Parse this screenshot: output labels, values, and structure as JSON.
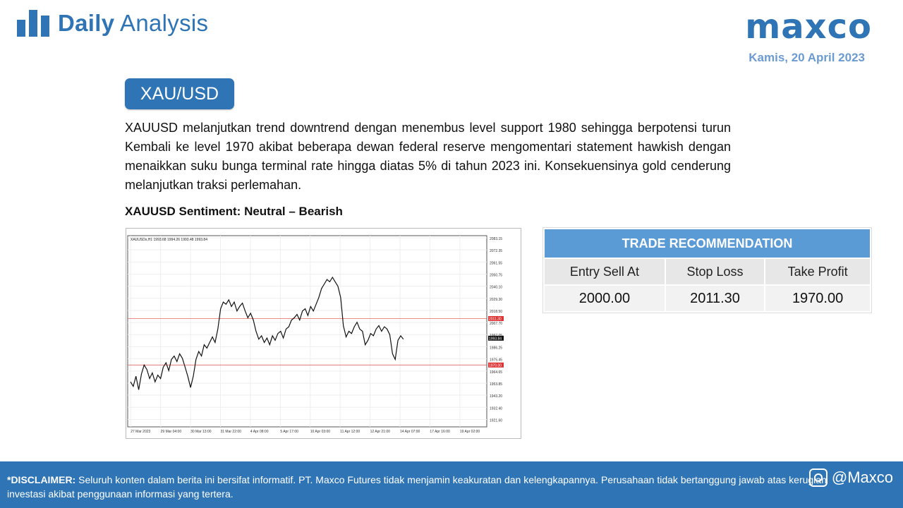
{
  "header": {
    "brand_bold": "Daily",
    "brand_light": "Analysis",
    "logo": "maxco",
    "date": "Kamis, 20 April 2023"
  },
  "main": {
    "pair": "XAU/USD",
    "analysis": "XAUUSD melanjutkan trend downtrend dengan menembus level support 1980 sehingga berpotensi turun Kembali ke level 1970 akibat beberapa dewan federal reserve mengomentari statement hawkish dengan menaikkan suku bunga terminal rate hingga diatas 5% di tahun 2023 ini. Konsekuensinya gold cenderung melanjutkan traksi perlemahan.",
    "sentiment": "XAUUSD Sentiment: Neutral – Bearish"
  },
  "trade": {
    "title": "TRADE RECOMMENDATION",
    "columns": [
      "Entry Sell At",
      "Stop Loss",
      "Take Profit"
    ],
    "values": [
      "2000.00",
      "2011.30",
      "1970.00"
    ]
  },
  "chart_data": {
    "type": "line",
    "title": "XAUUSDs,H1 1993.68 1994.26 1993.48 1993.84",
    "y_ticks": [
      "2083.15",
      "2072.35",
      "2061.55",
      "2050.75",
      "2040.10",
      "2029.30",
      "2018.50",
      "2007.70",
      "1997.05",
      "1986.25",
      "1975.45",
      "1964.65",
      "1953.85",
      "1943.20",
      "1932.40",
      "1921.60"
    ],
    "ylim": [
      1915,
      2085
    ],
    "x_ticks": [
      "27 Mar 2023",
      "29 Mar 04:00",
      "30 Mar 13:00",
      "31 Mar 22:00",
      "4 Apr 08:00",
      "5 Apr 17:00",
      "10 Apr 03:00",
      "11 Apr 12:00",
      "12 Apr 21:00",
      "14 Apr 07:00",
      "17 Apr 16:00",
      "19 Apr 02:00"
    ],
    "hlines": [
      {
        "value": 2011.3,
        "label": "2011.30"
      },
      {
        "value": 1970.0,
        "label": "1970.00"
      }
    ],
    "current": {
      "value": 1993.84,
      "label": "1993.84"
    },
    "series": [
      {
        "values": [
          1955,
          1951,
          1960,
          1948,
          1962,
          1970,
          1966,
          1958,
          1963,
          1955,
          1961,
          1958,
          1968,
          1972,
          1965,
          1975,
          1978,
          1973,
          1980,
          1976,
          1968,
          1960,
          1950,
          1960,
          1975,
          1982,
          1978,
          1988,
          1985,
          1990,
          1995,
          1990,
          2002,
          2020,
          2026,
          2024,
          2028,
          2022,
          2026,
          2018,
          2022,
          2025,
          2018,
          2012,
          2016,
          2010,
          2000,
          1993,
          1996,
          1990,
          1994,
          1988,
          1996,
          1992,
          1998,
          2000,
          1994,
          2002,
          2004,
          2010,
          2012,
          2015,
          2010,
          2018,
          2020,
          2014,
          2022,
          2018,
          2024,
          2030,
          2038,
          2042,
          2046,
          2044,
          2048,
          2044,
          2040,
          2030,
          2005,
          1995,
          2000,
          1998,
          2004,
          2008,
          2002,
          2000,
          1988,
          1992,
          1998,
          1996,
          2002,
          2005,
          2000,
          2004,
          2002,
          1997,
          1980,
          1975,
          1992,
          1996,
          1993
        ]
      }
    ]
  },
  "footer": {
    "disclaimer_label": "*DISCLAIMER:",
    "disclaimer_text": "Seluruh konten dalam berita ini bersifat informatif. PT. Maxco Futures tidak menjamin keakuratan dan kelengkapannya. Perusahaan tidak bertanggung jawab atas kerugian investasi akibat penggunaan informasi yang tertera.",
    "social": "@Maxco"
  },
  "colors": {
    "accent": "#2f75b5",
    "table_header": "#5b9bd5",
    "level_line": "#e06666"
  }
}
